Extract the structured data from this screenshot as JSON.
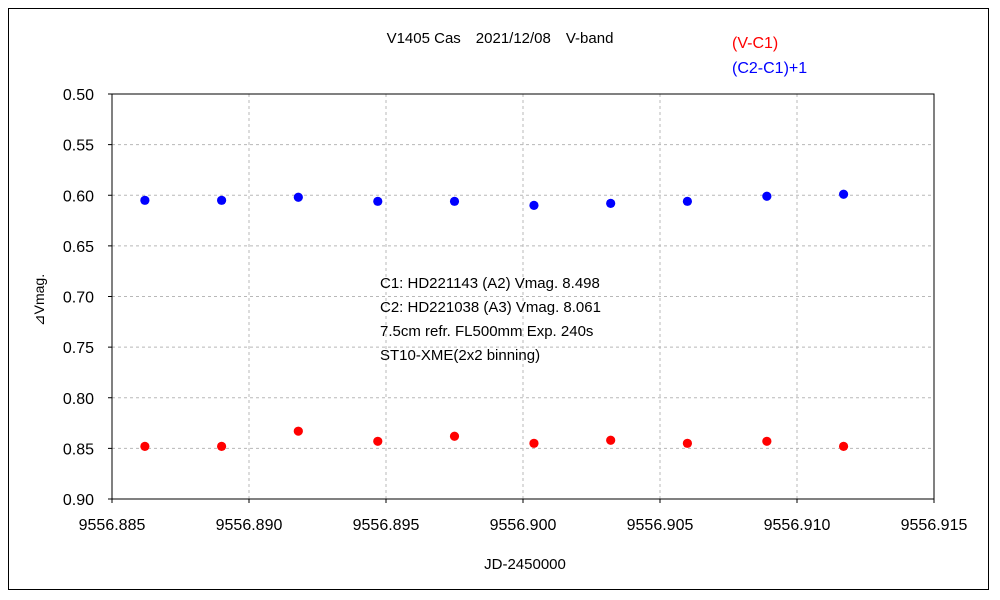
{
  "chart_data": {
    "type": "scatter",
    "title": "V1405 Cas　2021/12/08　V-band",
    "xlabel": "JD-2450000",
    "ylabel": "⊿Vmag.",
    "xlim": [
      9556.885,
      9556.915
    ],
    "ylim": [
      0.5,
      0.9
    ],
    "y_inverted": true,
    "grid": true,
    "legend_position": "top-right",
    "x_ticks": [
      "9556.885",
      "9556.890",
      "9556.895",
      "9556.900",
      "9556.905",
      "9556.910",
      "9556.915"
    ],
    "y_ticks": [
      "0.50",
      "0.55",
      "0.60",
      "0.65",
      "0.70",
      "0.75",
      "0.80",
      "0.85",
      "0.90"
    ],
    "annotations": [
      "C1: HD221143 (A2) Vmag. 8.498",
      "C2: HD221038 (A3) Vmag. 8.061",
      "7.5cm refr. FL500mm Exp. 240s",
      "ST10-XME(2x2 binning)"
    ],
    "series": [
      {
        "name": "(V-C1)",
        "color": "#ff0000",
        "x": [
          9556.8862,
          9556.889,
          9556.8918,
          9556.8947,
          9556.8975,
          9556.9004,
          9556.9032,
          9556.906,
          9556.9089,
          9556.9117
        ],
        "y": [
          0.848,
          0.848,
          0.833,
          0.843,
          0.838,
          0.845,
          0.842,
          0.845,
          0.843,
          0.848
        ]
      },
      {
        "name": "(C2-C1)+1",
        "color": "#0000ff",
        "x": [
          9556.8862,
          9556.889,
          9556.8918,
          9556.8947,
          9556.8975,
          9556.9004,
          9556.9032,
          9556.906,
          9556.9089,
          9556.9117
        ],
        "y": [
          0.605,
          0.605,
          0.602,
          0.606,
          0.606,
          0.61,
          0.608,
          0.606,
          0.601,
          0.599
        ]
      }
    ]
  }
}
